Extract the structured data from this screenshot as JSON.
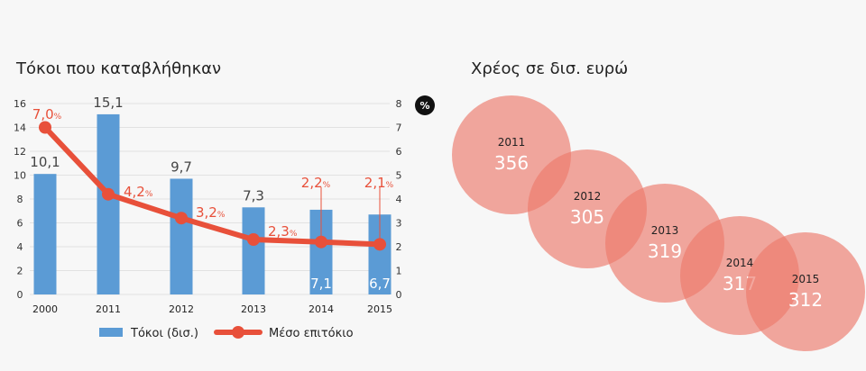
{
  "chart_data": [
    {
      "type": "bar+line",
      "title": "Τόκοι που καταβλήθηκαν",
      "categories": [
        "2000",
        "2011",
        "2012",
        "2013",
        "2014",
        "2015"
      ],
      "series": [
        {
          "name": "Τόκοι (δισ.)",
          "type": "bar",
          "values": [
            10.1,
            15.1,
            9.7,
            7.3,
            7.1,
            6.7
          ],
          "labels": [
            "10,1",
            "15,1",
            "9,7",
            "7,3",
            "7,1",
            "6,7"
          ],
          "color": "#5b9bd5"
        },
        {
          "name": "Μέσο επιτόκιο",
          "type": "line",
          "axis": "right",
          "values": [
            7.0,
            4.2,
            3.2,
            2.3,
            2.2,
            2.1
          ],
          "labels": [
            "7,0",
            "4,2",
            "3,2",
            "2,3",
            "2,2",
            "2,1"
          ],
          "label_suffix": "%",
          "color": "#e8503a"
        }
      ],
      "y_left": {
        "ticks": [
          "0",
          "2",
          "4",
          "6",
          "8",
          "10",
          "12",
          "14",
          "16"
        ],
        "ylim": [
          0,
          16
        ]
      },
      "y_right": {
        "ticks": [
          "0",
          "1",
          "2",
          "3",
          "4",
          "5",
          "6",
          "7",
          "8"
        ],
        "ylim": [
          0,
          8
        ],
        "unit_badge": "%"
      },
      "grid": true,
      "legend": "bottom"
    },
    {
      "type": "bubble",
      "title": "Χρέος σε δισ. ευρώ",
      "categories": [
        "2011",
        "2012",
        "2013",
        "2014",
        "2015"
      ],
      "values": [
        356,
        305,
        319,
        317,
        312
      ],
      "color": "#ec7a6c"
    }
  ]
}
